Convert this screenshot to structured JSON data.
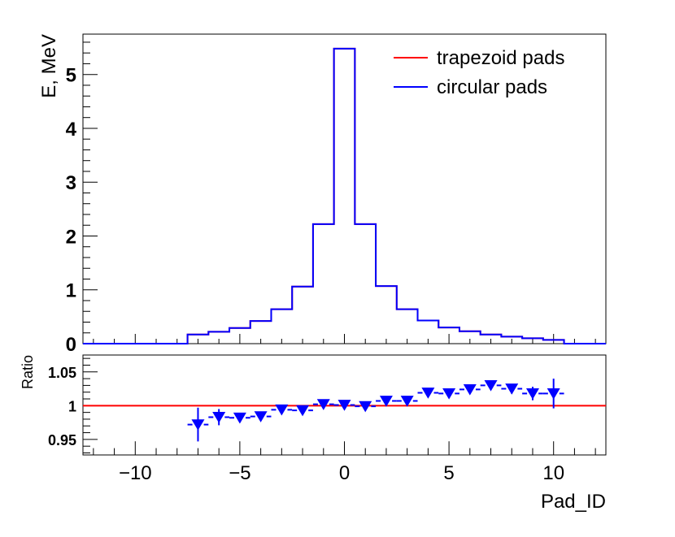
{
  "chart_data": [
    {
      "type": "histogram",
      "ylabel": "E, MeV",
      "xlim": [
        -12.5,
        12.5
      ],
      "ylim": [
        0,
        5.75
      ],
      "y_ticks": [
        "0",
        "1",
        "2",
        "3",
        "4",
        "5"
      ],
      "bin_edges": [
        -12.5,
        -11.5,
        -10.5,
        -9.5,
        -8.5,
        -7.5,
        -6.5,
        -5.5,
        -4.5,
        -3.5,
        -2.5,
        -1.5,
        -0.5,
        0.5,
        1.5,
        2.5,
        3.5,
        4.5,
        5.5,
        6.5,
        7.5,
        8.5,
        9.5,
        10.5,
        11.5,
        12.5
      ],
      "series": [
        {
          "name": "trapezoid pads",
          "color": "#ff0000",
          "values": [
            0,
            0,
            0,
            0,
            0,
            0.17,
            0.22,
            0.29,
            0.42,
            0.64,
            1.06,
            2.22,
            5.48,
            2.22,
            1.07,
            0.64,
            0.43,
            0.3,
            0.23,
            0.17,
            0.13,
            0.1,
            0.07,
            0,
            0
          ]
        },
        {
          "name": "circular pads",
          "color": "#0000ff",
          "values": [
            0,
            0,
            0,
            0,
            0,
            0.17,
            0.22,
            0.29,
            0.42,
            0.64,
            1.06,
            2.22,
            5.48,
            2.22,
            1.07,
            0.64,
            0.43,
            0.3,
            0.23,
            0.17,
            0.13,
            0.1,
            0.07,
            0,
            0
          ]
        }
      ]
    },
    {
      "type": "scatter",
      "ylabel": "Ratio",
      "xlabel": "Pad_ID",
      "xlim": [
        -12.5,
        12.5
      ],
      "ylim": [
        0.927,
        1.075
      ],
      "y_ticks": [
        "0.95",
        "1",
        "1.05"
      ],
      "x_ticks": [
        "−10",
        "−5",
        "0",
        "5",
        "10"
      ],
      "reference_line": {
        "value": 1,
        "color": "#ff0000"
      },
      "series": [
        {
          "name": "ratio",
          "color": "#0000ff",
          "marker": "triangle-down",
          "x": [
            -7,
            -6,
            -5,
            -4,
            -3,
            -2,
            -1,
            0,
            1,
            2,
            3,
            4,
            5,
            6,
            7,
            8,
            9,
            10
          ],
          "y": [
            0.972,
            0.983,
            0.982,
            0.984,
            0.994,
            0.993,
            1.002,
            1.001,
            0.999,
            1.007,
            1.007,
            1.019,
            1.018,
            1.024,
            1.03,
            1.025,
            1.018,
            1.018
          ],
          "err": [
            0.025,
            0.012,
            0.006,
            0.004,
            0.003,
            0.003,
            0.002,
            0.002,
            0.002,
            0.003,
            0.003,
            0.004,
            0.004,
            0.006,
            0.006,
            0.007,
            0.01,
            0.022
          ]
        }
      ]
    }
  ]
}
